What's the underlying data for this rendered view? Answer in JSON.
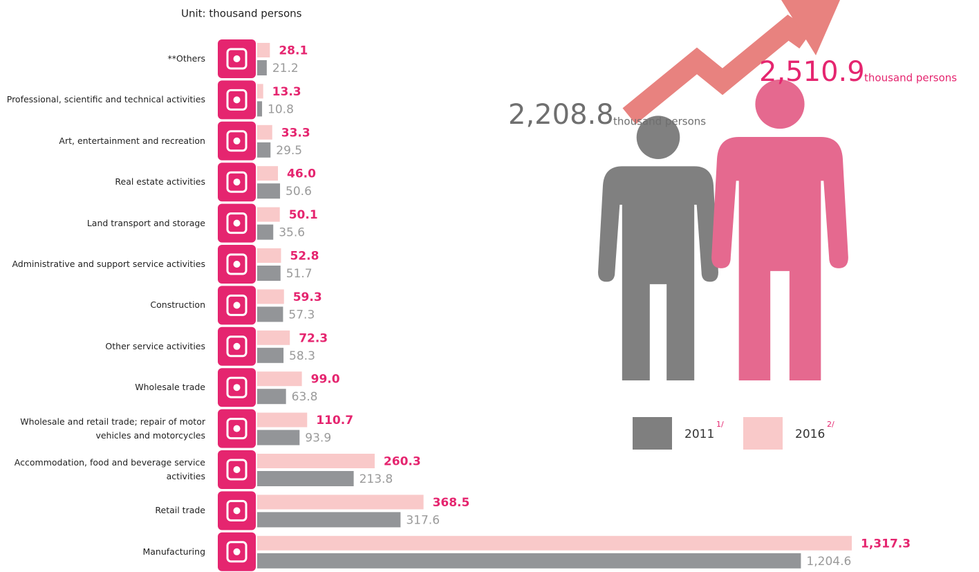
{
  "chart_data": {
    "type": "bar",
    "orientation": "horizontal",
    "unit_note": "Unit: thousand persons",
    "categories": [
      "**Others",
      "Professional, scientific and technical activities",
      "Art, entertainment and recreation",
      "Real estate activities",
      "Land transport and storage",
      "Administrative and support service activities",
      "Construction",
      "Other service activities",
      "Wholesale trade",
      "Wholesale and retail trade; repair of motor vehicles and motorcycles",
      "Accommodation, food and beverage service activities",
      "Retail trade",
      "Manufacturing"
    ],
    "series": [
      {
        "name": "2016",
        "note": "2/",
        "color": "#f9c9c9",
        "label_color": "#e5256f",
        "values": [
          28.1,
          13.3,
          33.3,
          46.0,
          50.1,
          52.8,
          59.3,
          72.3,
          99.0,
          110.7,
          260.3,
          368.5,
          1317.3
        ],
        "value_labels": [
          "28.1",
          "13.3",
          "33.3",
          "46.0",
          "50.1",
          "52.8",
          "59.3",
          "72.3",
          "99.0",
          "110.7",
          "260.3",
          "368.5",
          "1,317.3"
        ]
      },
      {
        "name": "2011",
        "note": "1/",
        "color": "#939598",
        "label_color": "#9a9a9a",
        "values": [
          21.2,
          10.8,
          29.5,
          50.6,
          35.6,
          51.7,
          57.3,
          58.3,
          63.8,
          93.9,
          213.8,
          317.6,
          1204.6
        ],
        "value_labels": [
          "21.2",
          "10.8",
          "29.5",
          "50.6",
          "35.6",
          "51.7",
          "57.3",
          "58.3",
          "63.8",
          "93.9",
          "213.8",
          "317.6",
          "1,204.6"
        ]
      }
    ],
    "totals": [
      {
        "value": 2208.8,
        "label": "2,208.8",
        "unit": "thousand persons",
        "color": "#6f6f6f",
        "figure_color": "#808080"
      },
      {
        "value": 2510.9,
        "label": "2,510.9",
        "unit": "thousand persons",
        "color": "#e5256f",
        "figure_color": "#e5698f"
      }
    ]
  }
}
